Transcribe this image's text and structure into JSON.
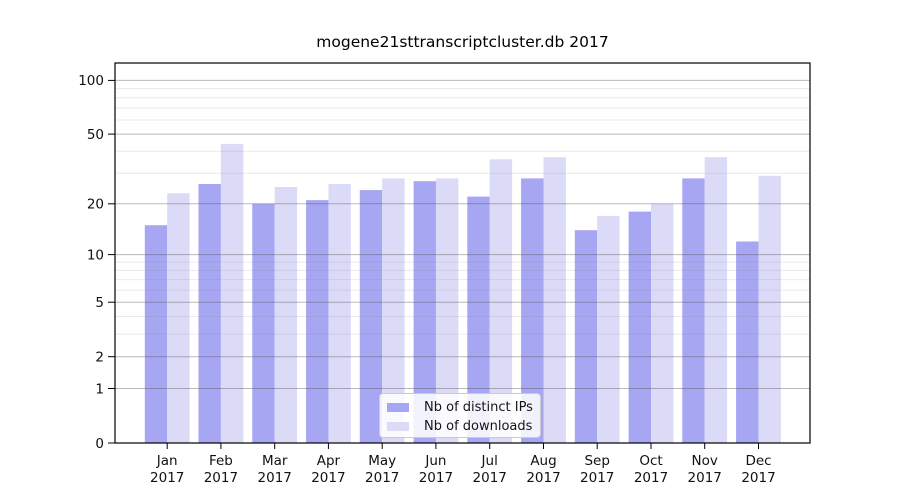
{
  "chart_data": {
    "type": "bar",
    "title": "mogene21sttranscriptcluster.db 2017",
    "categories": [
      "Jan",
      "Feb",
      "Mar",
      "Apr",
      "May",
      "Jun",
      "Jul",
      "Aug",
      "Sep",
      "Oct",
      "Nov",
      "Dec"
    ],
    "category_year": "2017",
    "series": [
      {
        "name": "Nb of distinct IPs",
        "color": "#a6a6f2",
        "values": [
          15,
          26,
          20,
          21,
          24,
          27,
          22,
          28,
          14,
          18,
          28,
          12
        ]
      },
      {
        "name": "Nb of downloads",
        "color": "#dbdbf8",
        "values": [
          23,
          44,
          25,
          26,
          28,
          28,
          36,
          37,
          17,
          20,
          37,
          29
        ]
      }
    ],
    "yscale": "log10(value+1)",
    "yticks": [
      0,
      1,
      2,
      5,
      10,
      20,
      50,
      100
    ],
    "yminorticks": [
      3,
      4,
      6,
      7,
      8,
      9,
      30,
      40,
      60,
      70,
      80,
      90
    ],
    "ylim": [
      0,
      125
    ],
    "xlabel": "",
    "ylabel": "",
    "grid": "on",
    "legend_position": "bottom-center",
    "colors": {
      "major_grid": "#b0b0b0",
      "minor_grid": "#e6e6e6",
      "frame": "#000000",
      "text": "#111111"
    }
  }
}
